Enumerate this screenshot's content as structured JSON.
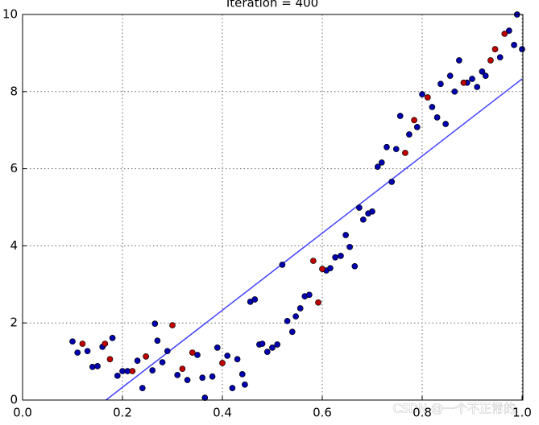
{
  "chart_data": {
    "type": "scatter",
    "title": "Iteration = 400",
    "xlim": [
      0,
      1
    ],
    "ylim": [
      0,
      10
    ],
    "xticks": [
      {
        "value": 0,
        "label": "0.0"
      },
      {
        "value": 0.2,
        "label": "0.2"
      },
      {
        "value": 0.4,
        "label": "0.4"
      },
      {
        "value": 0.6,
        "label": "0.6"
      },
      {
        "value": 0.8,
        "label": "0.8"
      },
      {
        "value": 1,
        "label": "1.0"
      }
    ],
    "yticks": [
      0,
      2,
      4,
      6,
      8,
      10
    ],
    "grid": true,
    "series": [
      {
        "color": "#0000b0",
        "x": [
          0.1,
          0.11,
          0.13,
          0.14,
          0.15,
          0.16,
          0.18,
          0.19,
          0.2,
          0.21,
          0.23,
          0.24,
          0.26,
          0.265,
          0.27,
          0.28,
          0.29,
          0.31,
          0.33,
          0.35,
          0.36,
          0.365,
          0.38,
          0.39,
          0.41,
          0.42,
          0.43,
          0.44,
          0.445,
          0.456,
          0.465,
          0.474,
          0.48,
          0.49,
          0.5,
          0.51,
          0.52,
          0.53,
          0.54,
          0.547,
          0.556,
          0.565,
          0.574,
          0.608,
          0.616,
          0.626,
          0.637,
          0.647,
          0.655,
          0.665,
          0.674,
          0.682,
          0.692,
          0.7,
          0.711,
          0.719,
          0.729,
          0.739,
          0.748,
          0.756,
          0.774,
          0.79,
          0.8,
          0.82,
          0.83,
          0.837,
          0.847,
          0.856,
          0.865,
          0.874,
          0.89,
          0.9,
          0.91,
          0.92,
          0.927,
          0.956,
          0.974,
          0.984,
          0.99,
          1.0
        ],
        "y": [
          1.52,
          1.23,
          1.27,
          0.86,
          0.88,
          1.38,
          1.61,
          0.63,
          0.75,
          0.75,
          1.02,
          0.31,
          0.77,
          1.98,
          1.54,
          0.98,
          1.27,
          0.65,
          0.52,
          1.17,
          0.58,
          0.06,
          0.61,
          1.36,
          1.15,
          0.31,
          1.06,
          0.67,
          0.4,
          2.55,
          2.61,
          1.44,
          1.46,
          1.25,
          1.36,
          1.44,
          3.51,
          2.05,
          1.77,
          2.17,
          2.38,
          2.69,
          2.73,
          3.36,
          3.42,
          3.7,
          3.74,
          4.28,
          3.97,
          3.47,
          4.99,
          4.68,
          4.84,
          4.89,
          6.05,
          6.16,
          6.56,
          5.66,
          6.51,
          7.37,
          6.89,
          7.08,
          7.93,
          7.6,
          7.33,
          8.2,
          7.16,
          8.41,
          8.0,
          8.81,
          8.23,
          8.33,
          8.12,
          8.52,
          8.41,
          8.89,
          9.58,
          9.21,
          10.0,
          9.1
        ]
      },
      {
        "color": "#c00000",
        "x": [
          0.12,
          0.165,
          0.175,
          0.22,
          0.247,
          0.3,
          0.32,
          0.34,
          0.4,
          0.582,
          0.592,
          0.6,
          0.766,
          0.784,
          0.811,
          0.883,
          0.937,
          0.946,
          0.965
        ],
        "y": [
          1.46,
          1.46,
          1.06,
          0.75,
          1.13,
          1.94,
          0.81,
          1.23,
          0.96,
          3.61,
          2.53,
          3.4,
          6.41,
          7.26,
          7.85,
          8.23,
          8.81,
          9.1,
          9.5
        ]
      }
    ],
    "fit_line": {
      "color": "#4444ff",
      "x": [
        0.167,
        1.0
      ],
      "y": [
        0,
        8.33
      ]
    },
    "watermark": "CSDN @一个不正常的"
  }
}
